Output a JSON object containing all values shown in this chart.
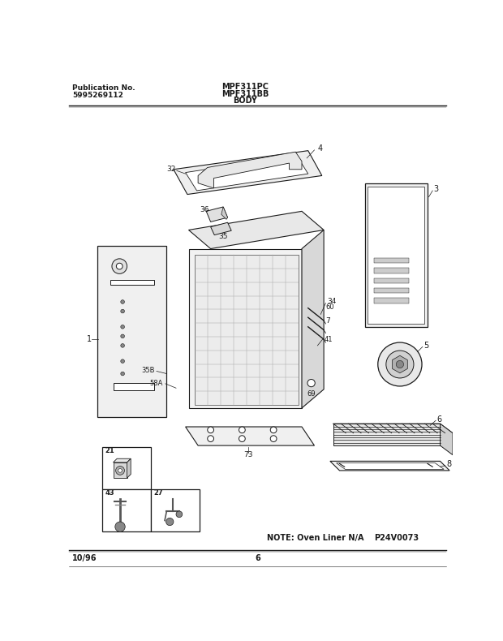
{
  "title_left_line1": "Publication No.",
  "title_left_line2": "5995269112",
  "title_center_line1": "MPF311PC",
  "title_center_line2": "MPF311BB",
  "title_center_line3": "BODY",
  "footer_left": "10/96",
  "footer_center": "6",
  "note_text": "NOTE: Oven Liner N/A",
  "part_code": "P24V0073",
  "bg_color": "#ffffff",
  "line_color": "#1a1a1a",
  "fill_color": "#f0f0f0",
  "dark_fill": "#cccccc"
}
